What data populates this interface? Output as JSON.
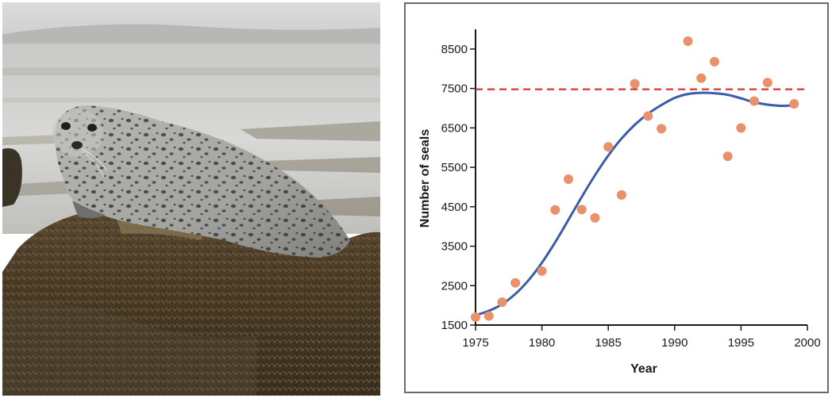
{
  "photo": {
    "subject": "harbor-seal-on-rock"
  },
  "chart_data": {
    "type": "scatter",
    "xlabel": "Year",
    "ylabel": "Number of seals",
    "xlim": [
      1975,
      2000
    ],
    "ylim": [
      1500,
      9000
    ],
    "x_ticks": [
      1975,
      1980,
      1985,
      1990,
      1995,
      2000
    ],
    "y_ticks": [
      1500,
      2500,
      3500,
      4500,
      5500,
      6500,
      7500,
      8500
    ],
    "points": [
      {
        "x": 1975,
        "y": 1700
      },
      {
        "x": 1976,
        "y": 1730
      },
      {
        "x": 1977,
        "y": 2080
      },
      {
        "x": 1978,
        "y": 2570
      },
      {
        "x": 1980,
        "y": 2870
      },
      {
        "x": 1981,
        "y": 4420
      },
      {
        "x": 1982,
        "y": 5200
      },
      {
        "x": 1983,
        "y": 4430
      },
      {
        "x": 1984,
        "y": 4220
      },
      {
        "x": 1985,
        "y": 6020
      },
      {
        "x": 1986,
        "y": 4800
      },
      {
        "x": 1987,
        "y": 7620
      },
      {
        "x": 1988,
        "y": 6800
      },
      {
        "x": 1989,
        "y": 6480
      },
      {
        "x": 1991,
        "y": 8700
      },
      {
        "x": 1992,
        "y": 7760
      },
      {
        "x": 1993,
        "y": 8180
      },
      {
        "x": 1994,
        "y": 5780
      },
      {
        "x": 1995,
        "y": 6500
      },
      {
        "x": 1996,
        "y": 7180
      },
      {
        "x": 1997,
        "y": 7650
      },
      {
        "x": 1999,
        "y": 7110
      }
    ],
    "fit_curve": [
      {
        "x": 1975,
        "y": 1750
      },
      {
        "x": 1976,
        "y": 1860
      },
      {
        "x": 1977,
        "y": 2030
      },
      {
        "x": 1978,
        "y": 2290
      },
      {
        "x": 1979,
        "y": 2640
      },
      {
        "x": 1980,
        "y": 3080
      },
      {
        "x": 1981,
        "y": 3600
      },
      {
        "x": 1982,
        "y": 4170
      },
      {
        "x": 1983,
        "y": 4750
      },
      {
        "x": 1984,
        "y": 5300
      },
      {
        "x": 1985,
        "y": 5800
      },
      {
        "x": 1986,
        "y": 6230
      },
      {
        "x": 1987,
        "y": 6580
      },
      {
        "x": 1988,
        "y": 6860
      },
      {
        "x": 1989,
        "y": 7080
      },
      {
        "x": 1990,
        "y": 7260
      },
      {
        "x": 1991,
        "y": 7360
      },
      {
        "x": 1992,
        "y": 7390
      },
      {
        "x": 1993,
        "y": 7380
      },
      {
        "x": 1994,
        "y": 7340
      },
      {
        "x": 1995,
        "y": 7250
      },
      {
        "x": 1996,
        "y": 7150
      },
      {
        "x": 1997,
        "y": 7090
      },
      {
        "x": 1998,
        "y": 7060
      },
      {
        "x": 1999,
        "y": 7070
      }
    ],
    "carrying_capacity": {
      "y": 7480,
      "x_start": 1975,
      "x_end": 1999.8
    },
    "colors": {
      "points": "#e8916b",
      "curve": "#3a5da8",
      "capacity": "#d9342b",
      "axis": "#1a1a1a",
      "frame": "#6b6b6b"
    },
    "grid": false,
    "legend": "none"
  }
}
